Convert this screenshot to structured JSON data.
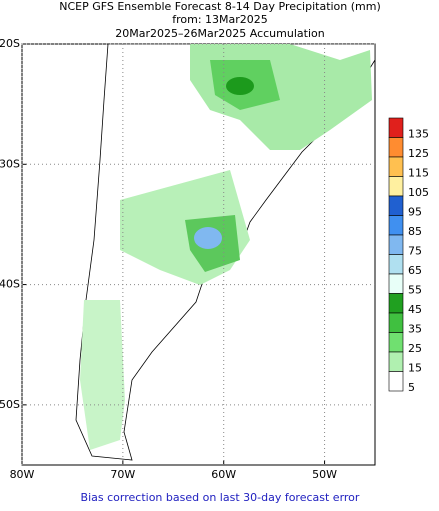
{
  "header": {
    "title": "NCEP GFS Ensemble Forecast 8-14 Day Precipitation (mm)",
    "subtitle": "from: 13Mar2025",
    "period": "20Mar2025–26Mar2025 Accumulation"
  },
  "map": {
    "lonlim": [
      -80,
      -45
    ],
    "latlim": [
      -20,
      -55
    ],
    "lat_ticks": [
      {
        "value": -20,
        "label": "20S"
      },
      {
        "value": -30,
        "label": "30S"
      },
      {
        "value": -40,
        "label": "40S"
      },
      {
        "value": -50,
        "label": "50S"
      }
    ],
    "lon_ticks": [
      {
        "value": -80,
        "label": "80W"
      },
      {
        "value": -70,
        "label": "70W"
      },
      {
        "value": -60,
        "label": "60W"
      },
      {
        "value": -50,
        "label": "50W"
      }
    ],
    "grid": true,
    "colorbar": {
      "levels": [
        135,
        125,
        115,
        105,
        95,
        85,
        75,
        65,
        55,
        45,
        35,
        25,
        15,
        5
      ],
      "colors": [
        "#e0201c",
        "#ff8c30",
        "#ffc050",
        "#fff0a0",
        "#2060d0",
        "#4090f0",
        "#80b8f0",
        "#b0e0f0",
        "#e8fff8",
        "#20a020",
        "#40c040",
        "#70e070",
        "#b0f0b0",
        "#ffffff"
      ]
    }
  },
  "footer": "Bias correction based on last 30-day forecast error"
}
